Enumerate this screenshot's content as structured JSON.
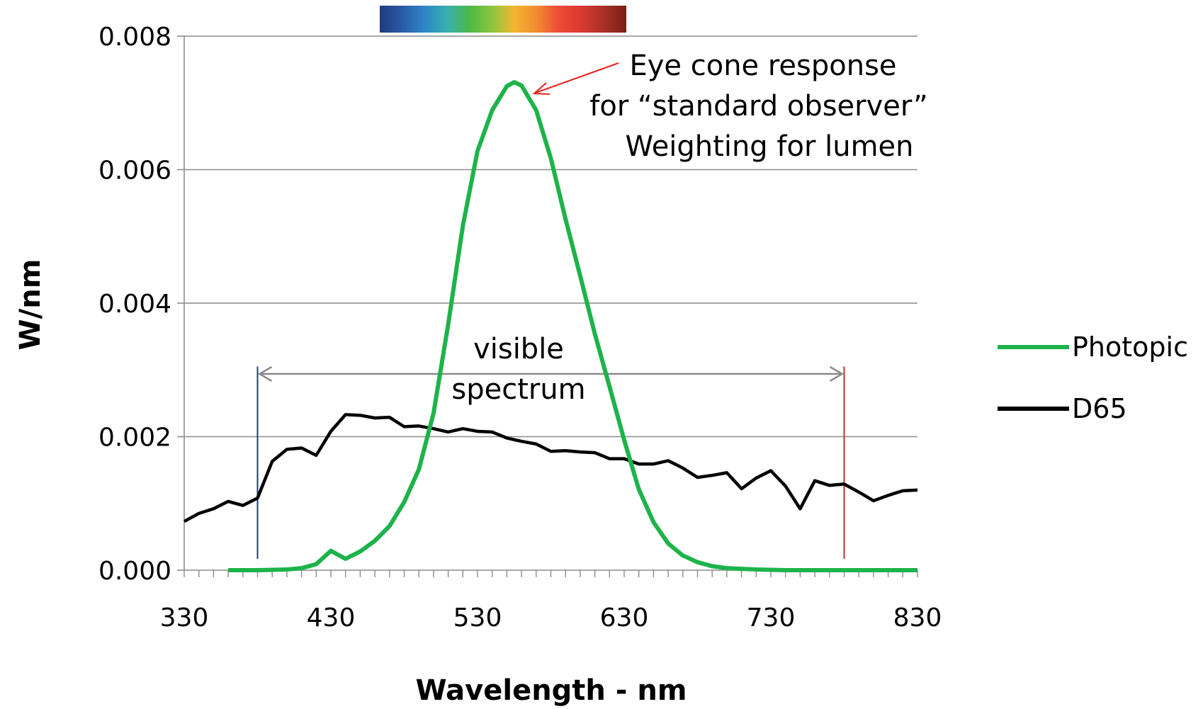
{
  "chart_data": {
    "type": "line",
    "title": "",
    "xlabel": "Wavelength - nm",
    "ylabel": "W/nm",
    "xlim": [
      330,
      830
    ],
    "ylim": [
      0,
      0.008
    ],
    "x_ticks": [
      330,
      430,
      530,
      630,
      730,
      830
    ],
    "x_tick_labels": [
      "330",
      "430",
      "530",
      "630",
      "730",
      "830"
    ],
    "x_minor_step": 10,
    "y_ticks": [
      0,
      0.002,
      0.004,
      0.006,
      0.008
    ],
    "y_tick_labels": [
      "0.000",
      "0.002",
      "0.004",
      "0.006",
      "0.008"
    ],
    "grid": "horizontal",
    "legend_position": "right",
    "series": [
      {
        "name": "Photopic",
        "color": "#1db34a",
        "x": [
          360,
          380,
          400,
          410,
          420,
          430,
          440,
          450,
          460,
          470,
          480,
          490,
          500,
          510,
          520,
          530,
          540,
          550,
          555,
          560,
          570,
          580,
          590,
          600,
          610,
          620,
          630,
          640,
          650,
          660,
          670,
          680,
          690,
          700,
          710,
          720,
          740,
          760,
          780,
          800,
          830
        ],
        "y": [
          0.0,
          0.0,
          1e-05,
          3e-05,
          9e-05,
          0.00029,
          0.00017,
          0.00028,
          0.00044,
          0.00066,
          0.00102,
          0.00151,
          0.00235,
          0.00368,
          0.00516,
          0.00628,
          0.00689,
          0.00725,
          0.00731,
          0.00726,
          0.00689,
          0.00617,
          0.00526,
          0.00441,
          0.00354,
          0.00275,
          0.00195,
          0.00121,
          0.00072,
          0.0004,
          0.00022,
          0.00012,
          6e-05,
          3e-05,
          2e-05,
          1e-05,
          0.0,
          0.0,
          0.0,
          0.0,
          0.0
        ]
      },
      {
        "name": "D65",
        "color": "#000000",
        "x": [
          330,
          340,
          350,
          360,
          370,
          380,
          390,
          400,
          410,
          420,
          430,
          440,
          450,
          460,
          470,
          480,
          490,
          500,
          510,
          520,
          530,
          540,
          550,
          560,
          570,
          580,
          590,
          600,
          610,
          620,
          630,
          640,
          650,
          660,
          670,
          680,
          690,
          700,
          710,
          720,
          730,
          740,
          750,
          760,
          770,
          780,
          790,
          800,
          810,
          820,
          830
        ],
        "y": [
          0.00073,
          0.00085,
          0.00092,
          0.00103,
          0.00097,
          0.00108,
          0.00163,
          0.00181,
          0.00183,
          0.00172,
          0.00208,
          0.00233,
          0.00232,
          0.00228,
          0.00229,
          0.00215,
          0.00216,
          0.00212,
          0.00207,
          0.00212,
          0.00208,
          0.00207,
          0.00198,
          0.00193,
          0.00189,
          0.00178,
          0.00179,
          0.00177,
          0.00176,
          0.00167,
          0.00167,
          0.00159,
          0.00159,
          0.00164,
          0.00153,
          0.00139,
          0.00142,
          0.00146,
          0.00122,
          0.00138,
          0.00149,
          0.00126,
          0.00092,
          0.00134,
          0.00127,
          0.00129,
          0.00117,
          0.00104,
          0.00112,
          0.00119,
          0.0012
        ]
      }
    ],
    "annotations": [
      {
        "lines": [
          "Eye cone response",
          "for “standard observer”",
          "Weighting for lumen"
        ]
      },
      {
        "lines": [
          "visible",
          "spectrum"
        ]
      }
    ],
    "visible_range": {
      "start": 380,
      "end": 780,
      "start_color": "#1f3b80",
      "end_color": "#c0302a"
    },
    "spectrum_colors": [
      "#203a80",
      "#2a5aa6",
      "#2e86c6",
      "#38b0b0",
      "#4cb848",
      "#8cc63e",
      "#f2b630",
      "#f28c30",
      "#ee4a36",
      "#d83a30",
      "#a83028",
      "#7a1e16"
    ]
  }
}
